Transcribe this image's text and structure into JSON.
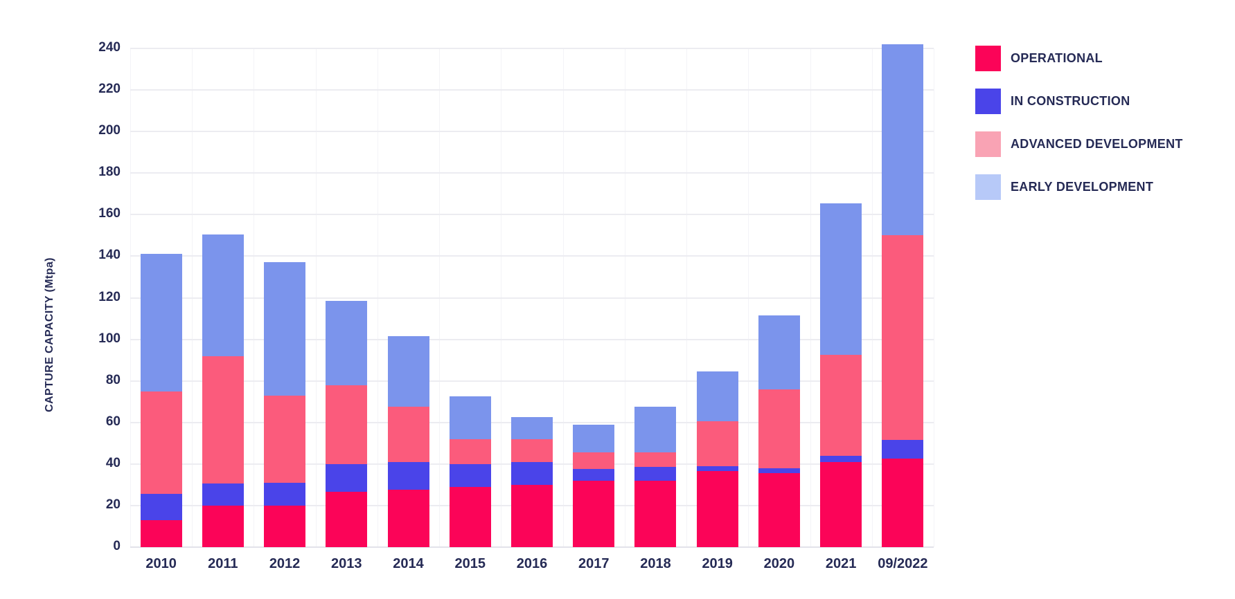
{
  "chart_data": {
    "type": "bar",
    "stacked": true,
    "title": "",
    "xlabel": "",
    "ylabel": "CAPTURE CAPACITY (Mtpa)",
    "ylim": [
      0,
      240
    ],
    "yticks": [
      0,
      20,
      40,
      60,
      80,
      100,
      120,
      140,
      160,
      180,
      200,
      220,
      240
    ],
    "grid": "horizontal gridlines every 20 plus faint vertical category separators",
    "legend_position": "right-top",
    "categories": [
      "2010",
      "2011",
      "2012",
      "2013",
      "2014",
      "2015",
      "2016",
      "2017",
      "2018",
      "2019",
      "2020",
      "2021",
      "09/2022"
    ],
    "series": [
      {
        "name": "OPERATIONAL",
        "bar_color": "#FB0458",
        "legend_color": "#FB0458",
        "values": [
          13,
          20,
          20,
          26.5,
          27.5,
          29,
          30,
          32,
          32,
          36.5,
          35.5,
          41,
          42.5
        ]
      },
      {
        "name": "IN CONSTRUCTION",
        "bar_color": "#4A44E9",
        "legend_color": "#4A44E9",
        "values": [
          12.5,
          10.5,
          11,
          13.5,
          13.5,
          11,
          11,
          5.5,
          6.5,
          2.5,
          2.5,
          3,
          9
        ]
      },
      {
        "name": "ADVANCED DEVELOPMENT",
        "bar_color": "#FB5B7C",
        "legend_color": "#F9A3B4",
        "values": [
          49.5,
          61.5,
          42,
          38,
          26.5,
          12,
          11,
          8,
          7,
          21.5,
          38,
          48.5,
          98.5
        ]
      },
      {
        "name": "EARLY DEVELOPMENT",
        "bar_color": "#7B94EC",
        "legend_color": "#B7C9F8",
        "values": [
          66,
          58.5,
          64,
          40.5,
          34,
          20.5,
          10.5,
          13.5,
          22,
          24,
          35.5,
          73,
          92
        ]
      }
    ]
  },
  "colors": {
    "text": "#252A55",
    "gridline": "#ECECF1",
    "axis_line": "#E2E2EA",
    "background": "#FFFFFF"
  }
}
